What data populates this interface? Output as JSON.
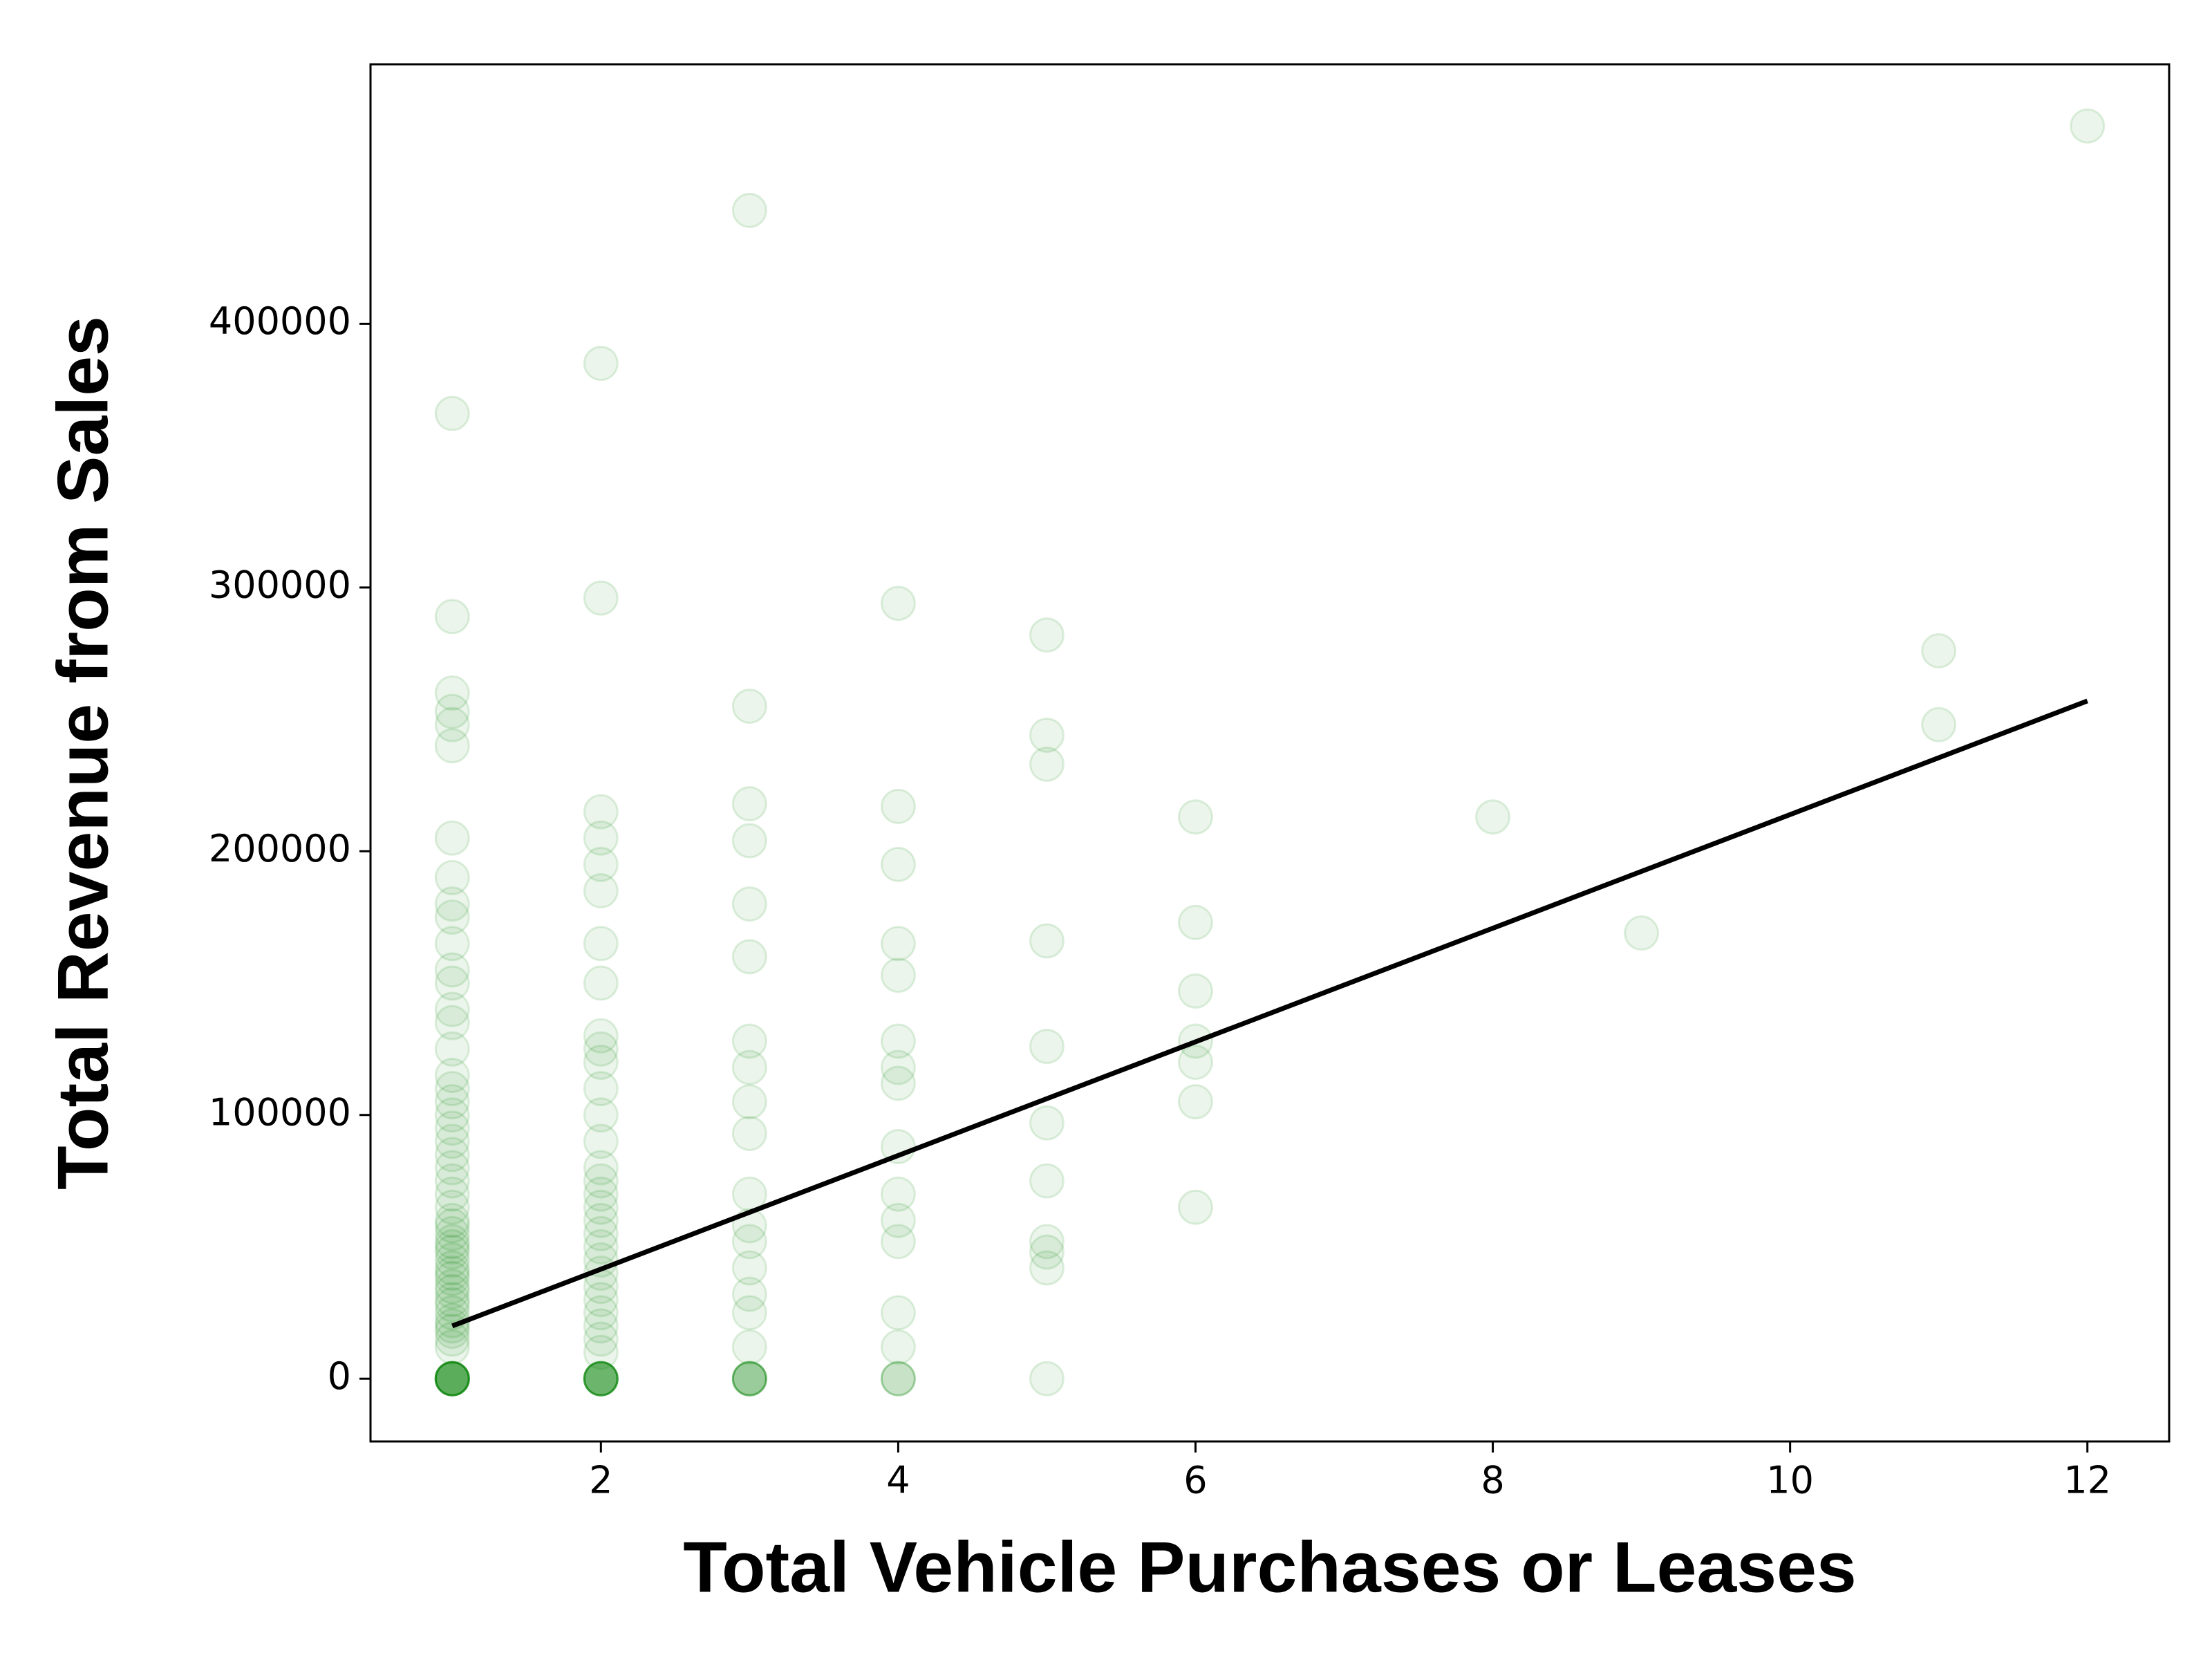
{
  "chart_data": {
    "type": "scatter",
    "xlabel": "Total Vehicle Purchases or Leases",
    "ylabel": "Total Revenue from Sales",
    "xlim": [
      0.45,
      12.55
    ],
    "ylim": [
      -23800,
      498400
    ],
    "xticks": [
      2,
      4,
      6,
      8,
      10,
      12
    ],
    "yticks": [
      0,
      100000,
      200000,
      300000,
      400000
    ],
    "series": [
      {
        "type": "scatter",
        "color": "#008000",
        "alpha": 0.08,
        "x": [
          1,
          1,
          1,
          1,
          1,
          1,
          1,
          1,
          1,
          1,
          1,
          1,
          1,
          1,
          1,
          1,
          1,
          1,
          1,
          1,
          1,
          1,
          1,
          1,
          1,
          1,
          1,
          1,
          1,
          1,
          1,
          1,
          1,
          1,
          1,
          1,
          1,
          1,
          1,
          1,
          1,
          1,
          1,
          1,
          1,
          1,
          1,
          1,
          1,
          1,
          1,
          1,
          1,
          1,
          1,
          1,
          1,
          1,
          1,
          2,
          2,
          2,
          2,
          2,
          2,
          2,
          2,
          2,
          2,
          2,
          2,
          2,
          2,
          2,
          2,
          2,
          2,
          2,
          2,
          2,
          2,
          2,
          2,
          2,
          2,
          2,
          2,
          2,
          2,
          2,
          2,
          2,
          2,
          2,
          2,
          2,
          2,
          2,
          3,
          3,
          3,
          3,
          3,
          3,
          3,
          3,
          3,
          3,
          3,
          3,
          3,
          3,
          3,
          3,
          3,
          3,
          3,
          3,
          3,
          3,
          3,
          4,
          4,
          4,
          4,
          4,
          4,
          4,
          4,
          4,
          4,
          4,
          4,
          4,
          4,
          4,
          4,
          4,
          5,
          5,
          5,
          5,
          5,
          5,
          5,
          5,
          5,
          5,
          5,
          6,
          6,
          6,
          6,
          6,
          6,
          6,
          8,
          9,
          11,
          11,
          12
        ],
        "values": [
          0,
          0,
          0,
          0,
          0,
          0,
          0,
          0,
          0,
          0,
          0,
          0,
          12000,
          15000,
          18000,
          20000,
          22000,
          25000,
          28000,
          30000,
          33000,
          35000,
          38000,
          40000,
          42000,
          45000,
          48000,
          50000,
          52000,
          55000,
          58000,
          60000,
          65000,
          70000,
          75000,
          80000,
          85000,
          90000,
          95000,
          100000,
          105000,
          110000,
          115000,
          125000,
          135000,
          140000,
          150000,
          155000,
          165000,
          175000,
          180000,
          190000,
          205000,
          240000,
          248000,
          253000,
          260000,
          289000,
          366000,
          0,
          0,
          0,
          0,
          0,
          0,
          0,
          0,
          0,
          0,
          10000,
          15000,
          20000,
          25000,
          30000,
          35000,
          40000,
          45000,
          50000,
          55000,
          60000,
          65000,
          70000,
          75000,
          80000,
          90000,
          100000,
          110000,
          120000,
          125000,
          130000,
          150000,
          165000,
          185000,
          195000,
          205000,
          215000,
          296000,
          385000,
          0,
          0,
          0,
          0,
          0,
          0,
          12000,
          25000,
          32000,
          42000,
          52000,
          58000,
          70000,
          93000,
          105000,
          118000,
          128000,
          160000,
          180000,
          204000,
          218000,
          255000,
          443000,
          0,
          0,
          0,
          12000,
          25000,
          52000,
          60000,
          70000,
          88000,
          112000,
          118000,
          128000,
          153000,
          165000,
          195000,
          217000,
          294000,
          0,
          42000,
          48000,
          52000,
          75000,
          97000,
          126000,
          166000,
          233000,
          244000,
          282000,
          65000,
          105000,
          120000,
          128000,
          147000,
          173000,
          213000,
          213000,
          169000,
          248000,
          276000,
          475000
        ]
      },
      {
        "type": "line",
        "color": "#000000",
        "x": [
          1,
          12
        ],
        "values": [
          20000,
          257000
        ]
      }
    ]
  }
}
